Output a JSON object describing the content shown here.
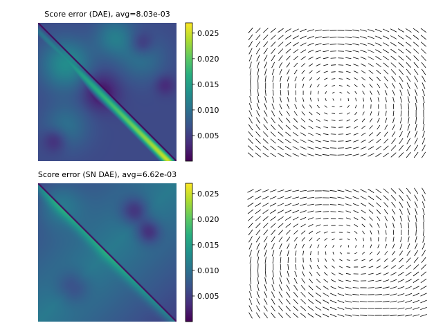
{
  "chart_data": [
    {
      "type": "heatmap",
      "title": "Score error (DAE), avg=8.03e-03",
      "colormap": "viridis",
      "color_range": [
        0.0,
        0.027
      ],
      "colorbar_ticks": [
        0.005,
        0.01,
        0.015,
        0.02,
        0.025
      ],
      "colorbar_tick_labels": [
        "0.005",
        "0.010",
        "0.015",
        "0.020",
        "0.025"
      ],
      "diagonal_band_peak": 0.027,
      "diagonal_band_min": 0.0,
      "off_diagonal_range": [
        0.0,
        0.017
      ],
      "axes_visible": false
    },
    {
      "type": "quiver",
      "title": "",
      "grid": [
        24,
        19
      ],
      "description_pattern": "rotational flow",
      "axes_visible": false
    },
    {
      "type": "heatmap",
      "title": "Score error (SN DAE), avg=6.62e-03",
      "colormap": "viridis",
      "color_range": [
        0.0,
        0.027
      ],
      "colorbar_ticks": [
        0.005,
        0.01,
        0.015,
        0.02,
        0.025
      ],
      "colorbar_tick_labels": [
        "0.005",
        "0.010",
        "0.015",
        "0.020",
        "0.025"
      ],
      "diagonal_band_peak": 0.017,
      "diagonal_band_min": 0.0,
      "off_diagonal_range": [
        0.0,
        0.014
      ],
      "axes_visible": false
    },
    {
      "type": "quiver",
      "title": "",
      "grid": [
        24,
        19
      ],
      "axes_visible": false
    }
  ]
}
